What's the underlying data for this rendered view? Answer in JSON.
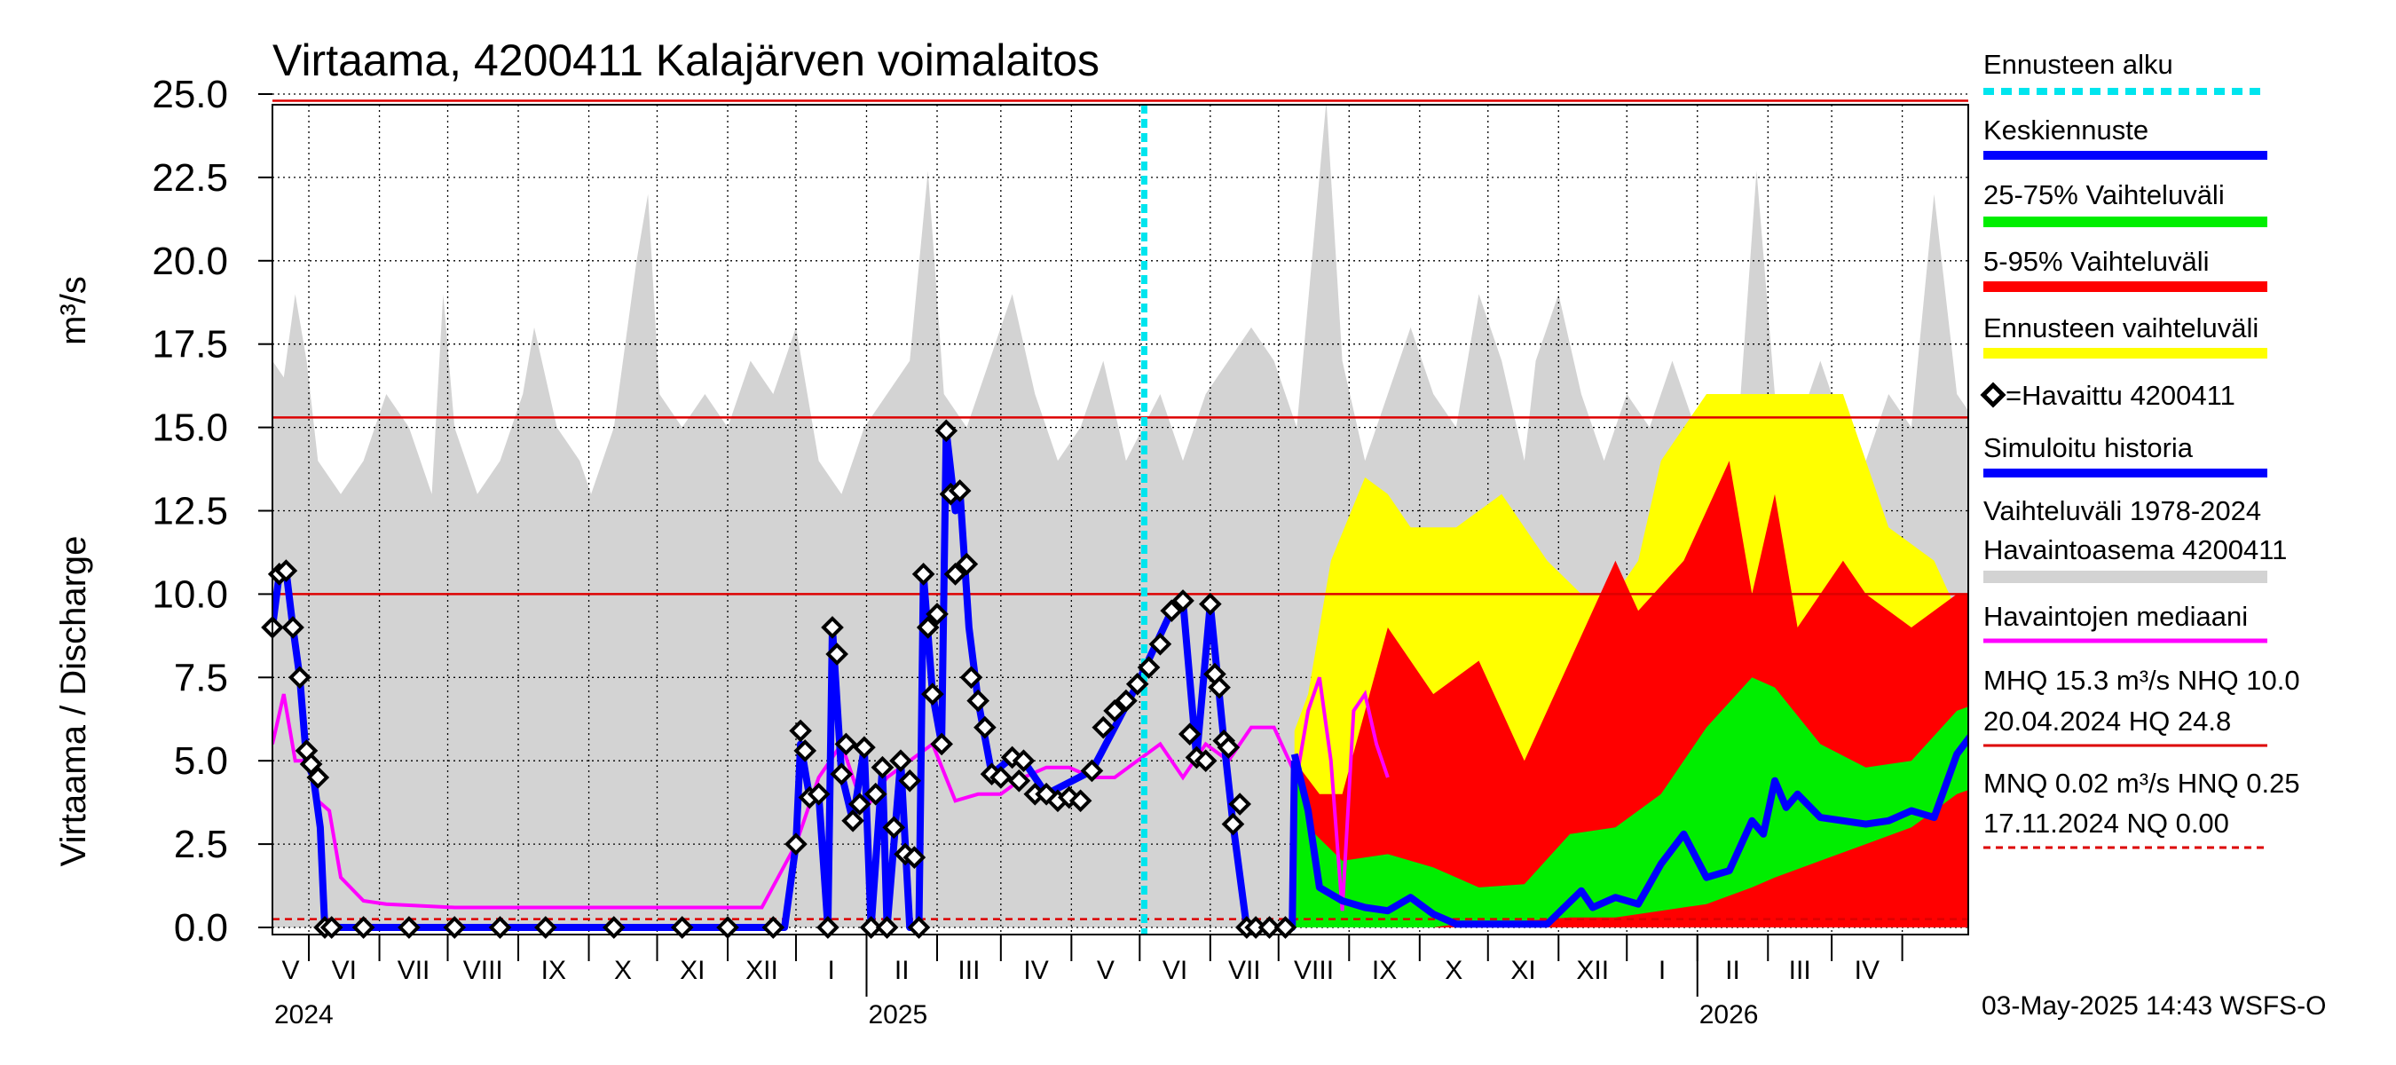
{
  "chart_data": {
    "type": "area",
    "title": "Virtaama, 4200411 Kalajärven voimalaitos",
    "ylabel": "Virtaama / Discharge",
    "yunit": "m³/s",
    "ylim": [
      0,
      25
    ],
    "yticks": [
      "0.0",
      "2.5",
      "5.0",
      "7.5",
      "10.0",
      "12.5",
      "15.0",
      "17.5",
      "20.0",
      "22.5",
      "25.0"
    ],
    "x_range": [
      "2024-04-15",
      "2026-04-30"
    ],
    "forecast_start": "2025-05-03",
    "months": [
      "V",
      "VI",
      "VII",
      "VIII",
      "IX",
      "X",
      "XI",
      "XII",
      "I",
      "II",
      "III",
      "IV",
      "V",
      "VI",
      "VII",
      "VIII",
      "IX",
      "X",
      "XI",
      "XII",
      "I",
      "II",
      "III",
      "IV"
    ],
    "years": [
      "2024",
      "2025",
      "2026"
    ],
    "reference_lines": [
      {
        "name": "HQ",
        "value": 24.8,
        "style": "solid"
      },
      {
        "name": "MHQ",
        "value": 15.3,
        "style": "solid"
      },
      {
        "name": "NHQ",
        "value": 10.0,
        "style": "solid"
      },
      {
        "name": "HNQ",
        "value": 0.25,
        "style": "dashed"
      }
    ],
    "colors": {
      "forecast_start": "#00e5ee",
      "mean_forecast": "#0000ff",
      "range_25_75": "#00ee00",
      "range_5_95": "#ff0000",
      "forecast_range": "#ffff00",
      "observed": "#000000",
      "simulated": "#0000ff",
      "history_range": "#d3d3d3",
      "median": "#ff00ff",
      "reference": "#dd0000"
    },
    "history_upper": [
      [
        0,
        17
      ],
      [
        5,
        16.5
      ],
      [
        10,
        19
      ],
      [
        15,
        17
      ],
      [
        20,
        14
      ],
      [
        30,
        13
      ],
      [
        40,
        14
      ],
      [
        50,
        16
      ],
      [
        60,
        15
      ],
      [
        70,
        13
      ],
      [
        75,
        19
      ],
      [
        80,
        15
      ],
      [
        90,
        13
      ],
      [
        100,
        14
      ],
      [
        110,
        16
      ],
      [
        115,
        18
      ],
      [
        125,
        15
      ],
      [
        135,
        14
      ],
      [
        140,
        13
      ],
      [
        150,
        15
      ],
      [
        160,
        20
      ],
      [
        165,
        22
      ],
      [
        170,
        16
      ],
      [
        180,
        15
      ],
      [
        190,
        16
      ],
      [
        200,
        15
      ],
      [
        210,
        17
      ],
      [
        220,
        16
      ],
      [
        230,
        18
      ],
      [
        240,
        14
      ],
      [
        250,
        13
      ],
      [
        260,
        15
      ],
      [
        270,
        16
      ],
      [
        280,
        17
      ],
      [
        288,
        22.7
      ],
      [
        295,
        16
      ],
      [
        305,
        15
      ],
      [
        315,
        17
      ],
      [
        325,
        19
      ],
      [
        335,
        16
      ],
      [
        345,
        14
      ],
      [
        355,
        15
      ],
      [
        365,
        17
      ],
      [
        375,
        14
      ],
      [
        390,
        16
      ],
      [
        400,
        14
      ],
      [
        410,
        16
      ],
      [
        430,
        18
      ],
      [
        440,
        17
      ],
      [
        450,
        15
      ],
      [
        463,
        24.8
      ],
      [
        470,
        17
      ],
      [
        480,
        14
      ],
      [
        490,
        16
      ],
      [
        500,
        18
      ],
      [
        510,
        16
      ],
      [
        520,
        15
      ],
      [
        530,
        19
      ],
      [
        540,
        17
      ],
      [
        550,
        14
      ],
      [
        555,
        17
      ],
      [
        565,
        19
      ],
      [
        575,
        16
      ],
      [
        585,
        14
      ],
      [
        595,
        16
      ],
      [
        605,
        15
      ],
      [
        615,
        17
      ],
      [
        625,
        15
      ],
      [
        635,
        14
      ],
      [
        645,
        16
      ],
      [
        652,
        22.7
      ],
      [
        660,
        16
      ],
      [
        670,
        15
      ],
      [
        680,
        17
      ],
      [
        690,
        15
      ],
      [
        700,
        14
      ],
      [
        710,
        16
      ],
      [
        720,
        15
      ],
      [
        730,
        22
      ],
      [
        740,
        16
      ],
      [
        750,
        15
      ],
      [
        760,
        17
      ],
      [
        770,
        15
      ],
      [
        780,
        14
      ],
      [
        790,
        16
      ],
      [
        805,
        15
      ],
      [
        820,
        18
      ],
      [
        828,
        24.8
      ],
      [
        836,
        17
      ],
      [
        846,
        15
      ]
    ],
    "history_lower": [
      [
        0,
        0
      ],
      [
        846,
        0
      ]
    ],
    "median": [
      [
        0,
        5.5
      ],
      [
        5,
        7
      ],
      [
        10,
        5
      ],
      [
        15,
        5
      ],
      [
        20,
        3.8
      ],
      [
        25,
        3.5
      ],
      [
        30,
        1.5
      ],
      [
        40,
        0.8
      ],
      [
        50,
        0.7
      ],
      [
        80,
        0.6
      ],
      [
        100,
        0.6
      ],
      [
        130,
        0.6
      ],
      [
        160,
        0.6
      ],
      [
        190,
        0.6
      ],
      [
        215,
        0.6
      ],
      [
        230,
        2.5
      ],
      [
        240,
        4.5
      ],
      [
        250,
        5.5
      ],
      [
        260,
        3.5
      ],
      [
        270,
        4.5
      ],
      [
        280,
        5
      ],
      [
        290,
        5.5
      ],
      [
        300,
        3.8
      ],
      [
        310,
        4
      ],
      [
        320,
        4
      ],
      [
        330,
        4.5
      ],
      [
        340,
        4.8
      ],
      [
        350,
        4.8
      ],
      [
        360,
        4.5
      ],
      [
        370,
        4.5
      ],
      [
        380,
        5
      ],
      [
        390,
        5.5
      ],
      [
        400,
        4.5
      ],
      [
        410,
        5.5
      ],
      [
        420,
        5
      ],
      [
        430,
        6
      ],
      [
        440,
        6
      ],
      [
        450,
        4.5
      ],
      [
        455,
        6.5
      ],
      [
        460,
        7.5
      ],
      [
        465,
        5
      ],
      [
        470,
        0.5
      ],
      [
        475,
        6.5
      ],
      [
        480,
        7
      ],
      [
        485,
        5.5
      ],
      [
        490,
        4.5
      ]
    ],
    "observed_points": [
      [
        0,
        9
      ],
      [
        3,
        10.6
      ],
      [
        6,
        10.7
      ],
      [
        9,
        9
      ],
      [
        12,
        7.5
      ],
      [
        15,
        5.3
      ],
      [
        17,
        4.9
      ],
      [
        20,
        4.5
      ],
      [
        23,
        0
      ],
      [
        26,
        0
      ],
      [
        40,
        0
      ],
      [
        60,
        0
      ],
      [
        80,
        0
      ],
      [
        100,
        0
      ],
      [
        120,
        0
      ],
      [
        150,
        0
      ],
      [
        180,
        0
      ],
      [
        200,
        0
      ],
      [
        220,
        0
      ],
      [
        230,
        2.5
      ],
      [
        232,
        5.9
      ],
      [
        234,
        5.3
      ],
      [
        236,
        3.9
      ],
      [
        240,
        4
      ],
      [
        244,
        0
      ],
      [
        246,
        9
      ],
      [
        248,
        8.2
      ],
      [
        250,
        4.6
      ],
      [
        252,
        5.5
      ],
      [
        255,
        3.2
      ],
      [
        258,
        3.7
      ],
      [
        260,
        5.4
      ],
      [
        263,
        0
      ],
      [
        265,
        4
      ],
      [
        268,
        4.8
      ],
      [
        270,
        0
      ],
      [
        273,
        3
      ],
      [
        276,
        5
      ],
      [
        278,
        2.2
      ],
      [
        280,
        4.4
      ],
      [
        282,
        2.1
      ],
      [
        284,
        0
      ],
      [
        286,
        10.6
      ],
      [
        288,
        9
      ],
      [
        290,
        7
      ],
      [
        292,
        9.4
      ],
      [
        294,
        5.5
      ],
      [
        296,
        14.9
      ],
      [
        298,
        13
      ],
      [
        300,
        10.6
      ],
      [
        302,
        13.1
      ],
      [
        305,
        10.9
      ],
      [
        307,
        7.5
      ],
      [
        310,
        6.8
      ],
      [
        313,
        6
      ],
      [
        316,
        4.6
      ],
      [
        320,
        4.5
      ],
      [
        325,
        5.1
      ],
      [
        328,
        4.4
      ],
      [
        330,
        5
      ],
      [
        335,
        4
      ],
      [
        340,
        4
      ],
      [
        345,
        3.8
      ],
      [
        350,
        3.9
      ],
      [
        355,
        3.8
      ],
      [
        360,
        4.7
      ],
      [
        365,
        6
      ],
      [
        370,
        6.5
      ],
      [
        375,
        6.8
      ],
      [
        380,
        7.3
      ],
      [
        385,
        7.8
      ],
      [
        390,
        8.5
      ],
      [
        395,
        9.5
      ],
      [
        400,
        9.8
      ],
      [
        403,
        5.8
      ],
      [
        406,
        5.1
      ],
      [
        410,
        5
      ],
      [
        412,
        9.7
      ],
      [
        414,
        7.6
      ],
      [
        416,
        7.2
      ],
      [
        418,
        5.6
      ],
      [
        420,
        5.4
      ],
      [
        422,
        3.1
      ],
      [
        425,
        3.7
      ],
      [
        428,
        0
      ],
      [
        432,
        0
      ],
      [
        438,
        0
      ],
      [
        445,
        0
      ]
    ],
    "simulated": [
      [
        0,
        9
      ],
      [
        3,
        10.6
      ],
      [
        6,
        10.7
      ],
      [
        9,
        9
      ],
      [
        12,
        7.5
      ],
      [
        15,
        5
      ],
      [
        18,
        4.5
      ],
      [
        21,
        3
      ],
      [
        23,
        0
      ],
      [
        60,
        0
      ],
      [
        120,
        0
      ],
      [
        180,
        0
      ],
      [
        225,
        0
      ],
      [
        230,
        2.5
      ],
      [
        232,
        5.5
      ],
      [
        236,
        3.9
      ],
      [
        240,
        4
      ],
      [
        244,
        0
      ],
      [
        246,
        9
      ],
      [
        250,
        4.6
      ],
      [
        255,
        3.2
      ],
      [
        260,
        5.4
      ],
      [
        263,
        0
      ],
      [
        268,
        4.8
      ],
      [
        270,
        0
      ],
      [
        276,
        5
      ],
      [
        280,
        0
      ],
      [
        284,
        0
      ],
      [
        286,
        10.6
      ],
      [
        290,
        7
      ],
      [
        294,
        5.5
      ],
      [
        296,
        14.9
      ],
      [
        300,
        12.5
      ],
      [
        302,
        13.1
      ],
      [
        306,
        9
      ],
      [
        310,
        6.8
      ],
      [
        316,
        4.6
      ],
      [
        325,
        5.1
      ],
      [
        330,
        5
      ],
      [
        340,
        4
      ],
      [
        360,
        4.7
      ],
      [
        380,
        7.3
      ],
      [
        395,
        9.5
      ],
      [
        400,
        9.8
      ],
      [
        406,
        5.1
      ],
      [
        412,
        9.7
      ],
      [
        418,
        5.6
      ],
      [
        422,
        3.1
      ],
      [
        428,
        0
      ],
      [
        438,
        0
      ],
      [
        448,
        0
      ],
      [
        449,
        5
      ]
    ],
    "forecast_mean": [
      [
        449,
        5.2
      ],
      [
        455,
        3.5
      ],
      [
        460,
        1.2
      ],
      [
        470,
        0.8
      ],
      [
        480,
        0.6
      ],
      [
        490,
        0.5
      ],
      [
        500,
        0.9
      ],
      [
        510,
        0.4
      ],
      [
        520,
        0.1
      ],
      [
        540,
        0.1
      ],
      [
        560,
        0.1
      ],
      [
        575,
        1.1
      ],
      [
        580,
        0.6
      ],
      [
        590,
        0.9
      ],
      [
        600,
        0.7
      ],
      [
        610,
        1.9
      ],
      [
        620,
        2.8
      ],
      [
        630,
        1.5
      ],
      [
        640,
        1.7
      ],
      [
        650,
        3.2
      ],
      [
        655,
        2.8
      ],
      [
        660,
        4.4
      ],
      [
        665,
        3.6
      ],
      [
        670,
        4
      ],
      [
        680,
        3.3
      ],
      [
        690,
        3.2
      ],
      [
        700,
        3.1
      ],
      [
        710,
        3.2
      ],
      [
        720,
        3.5
      ],
      [
        730,
        3.3
      ],
      [
        740,
        5.2
      ],
      [
        750,
        6.1
      ],
      [
        760,
        6
      ],
      [
        770,
        5.9
      ],
      [
        775,
        6.1
      ],
      [
        780,
        0.5
      ],
      [
        790,
        0
      ],
      [
        800,
        0
      ],
      [
        810,
        0
      ],
      [
        820,
        0.1
      ],
      [
        830,
        4
      ],
      [
        840,
        9
      ],
      [
        846,
        13.2
      ]
    ],
    "forecast_yellow": [
      [
        449,
        5.9,
        0
      ],
      [
        455,
        7,
        0
      ],
      [
        465,
        11,
        0
      ],
      [
        480,
        13.5,
        0
      ],
      [
        490,
        13,
        0
      ],
      [
        500,
        12,
        0
      ],
      [
        520,
        12,
        0
      ],
      [
        540,
        13,
        0
      ],
      [
        560,
        11,
        0
      ],
      [
        575,
        10,
        0
      ],
      [
        590,
        10,
        0
      ],
      [
        600,
        11,
        0
      ],
      [
        610,
        14,
        0
      ],
      [
        630,
        16,
        0
      ],
      [
        650,
        16,
        0
      ],
      [
        670,
        16,
        0
      ],
      [
        690,
        16,
        0
      ],
      [
        710,
        12,
        0
      ],
      [
        730,
        11,
        0
      ],
      [
        750,
        8,
        0
      ],
      [
        760,
        12,
        0
      ],
      [
        770,
        9,
        0
      ],
      [
        780,
        7,
        0
      ],
      [
        790,
        14,
        0
      ],
      [
        810,
        16,
        0
      ],
      [
        830,
        16,
        0
      ],
      [
        846,
        16,
        0
      ]
    ],
    "forecast_red": [
      [
        449,
        5,
        0
      ],
      [
        460,
        4,
        0
      ],
      [
        470,
        4,
        0
      ],
      [
        490,
        9,
        0
      ],
      [
        510,
        7,
        0
      ],
      [
        530,
        8,
        0
      ],
      [
        550,
        5,
        0
      ],
      [
        570,
        8,
        0
      ],
      [
        590,
        11,
        0
      ],
      [
        600,
        9.5,
        0
      ],
      [
        620,
        11,
        0
      ],
      [
        640,
        14,
        0
      ],
      [
        650,
        10,
        0
      ],
      [
        660,
        13,
        0
      ],
      [
        670,
        9,
        0
      ],
      [
        690,
        11,
        0
      ],
      [
        700,
        10,
        0
      ],
      [
        720,
        9,
        0
      ],
      [
        740,
        10,
        0
      ],
      [
        760,
        10,
        0
      ],
      [
        775,
        9,
        0
      ],
      [
        780,
        5,
        0
      ],
      [
        790,
        4.5,
        0
      ],
      [
        800,
        3,
        0
      ],
      [
        815,
        6,
        0
      ],
      [
        825,
        4,
        0
      ],
      [
        835,
        10,
        0
      ],
      [
        840,
        15,
        0
      ],
      [
        846,
        16,
        0
      ]
    ],
    "forecast_green": [
      [
        449,
        5,
        0
      ],
      [
        455,
        3,
        0
      ],
      [
        470,
        2,
        0
      ],
      [
        490,
        2.2,
        0
      ],
      [
        510,
        1.8,
        0
      ],
      [
        530,
        1.2,
        0.2
      ],
      [
        550,
        1.3,
        0.2
      ],
      [
        570,
        2.8,
        0.3
      ],
      [
        590,
        3,
        0.3
      ],
      [
        610,
        4,
        0.5
      ],
      [
        630,
        6,
        0.7
      ],
      [
        650,
        7.5,
        1.2
      ],
      [
        660,
        7.2,
        1.5
      ],
      [
        680,
        5.5,
        2
      ],
      [
        700,
        4.8,
        2.5
      ],
      [
        720,
        5,
        3
      ],
      [
        740,
        6.5,
        4
      ],
      [
        760,
        7,
        4.5
      ],
      [
        775,
        7,
        5
      ],
      [
        780,
        1,
        0
      ],
      [
        800,
        0.5,
        0
      ],
      [
        815,
        2,
        0
      ],
      [
        830,
        6,
        0
      ],
      [
        840,
        8,
        0
      ],
      [
        846,
        10,
        0
      ]
    ]
  },
  "legend": {
    "forecast_start": "Ennusteen alku",
    "mean_forecast": "Keskiennuste",
    "range_25_75": "25-75% Vaihteluväli",
    "range_5_95": "5-95% Vaihteluväli",
    "forecast_range": "Ennusteen vaihteluväli",
    "observed": "=Havaittu 4200411",
    "simulated": "Simuloitu historia",
    "history_range_1": "Vaihteluväli 1978-2024",
    "history_range_2": " Havaintoasema 4200411",
    "median": "Havaintojen mediaani",
    "stats_high_1": "MHQ 15.3 m³/s NHQ 10.0",
    "stats_high_2": "20.04.2024 HQ 24.8",
    "stats_low_1": "MNQ 0.02 m³/s HNQ 0.25",
    "stats_low_2": "17.11.2024 NQ 0.00"
  },
  "timestamp": "03-May-2025 14:43 WSFS-O"
}
